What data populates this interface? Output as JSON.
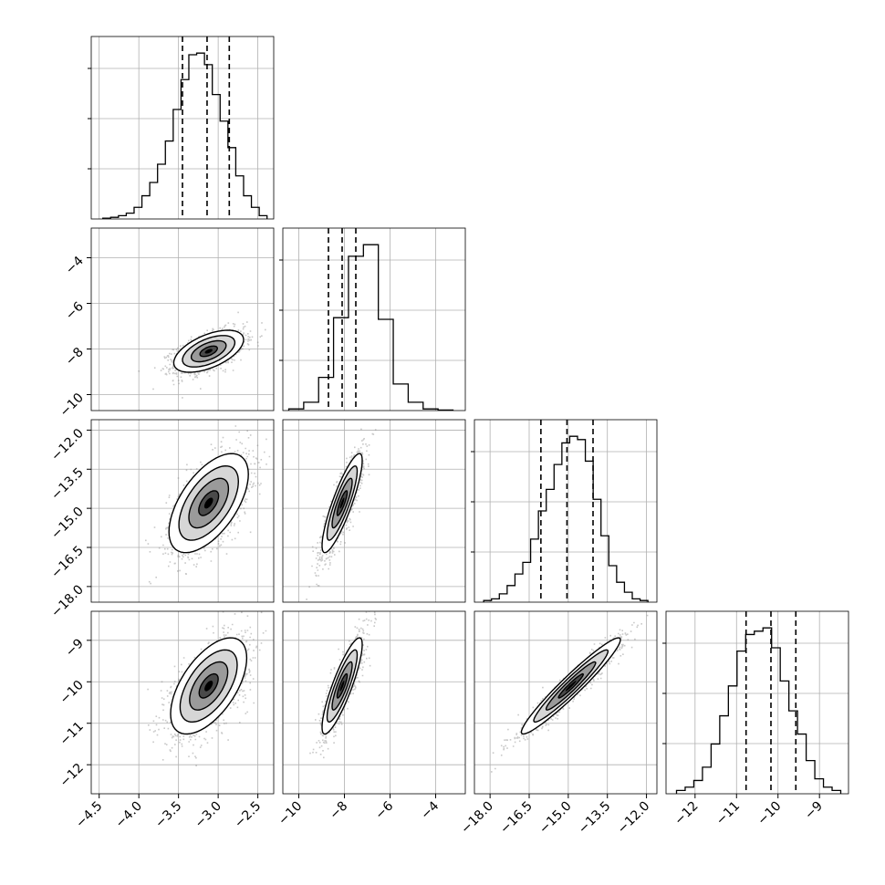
{
  "chart_data": {
    "type": "corner",
    "n_params": 4,
    "colors": {
      "marks": "#000000",
      "scatter": "#888888",
      "grid": "#b0b0b0",
      "background": "#ffffff"
    },
    "grid": true,
    "params": [
      {
        "range": [
          -4.6,
          -2.3
        ],
        "ticks": [
          -4.5,
          -4.0,
          -3.5,
          -3.0,
          -2.5
        ],
        "tick_labels": [
          "−4.5",
          "−4.0",
          "−3.5",
          "−3.0",
          "−2.5"
        ],
        "quantiles": [
          -3.45,
          -3.14,
          -2.86
        ],
        "hist": [
          0.005,
          0.01,
          0.02,
          0.035,
          0.07,
          0.14,
          0.22,
          0.33,
          0.47,
          0.66,
          0.84,
          0.99,
          1.0,
          0.93,
          0.75,
          0.59,
          0.43,
          0.26,
          0.14,
          0.07,
          0.02
        ]
      },
      {
        "range": [
          -10.7,
          -2.7
        ],
        "ticks": [
          -10,
          -8,
          -6,
          -4
        ],
        "tick_labels": [
          "−10",
          "−8",
          "−6",
          "−4"
        ],
        "quantiles": [
          -8.7,
          -8.1,
          -7.5
        ],
        "hist": [
          0.01,
          0.05,
          0.2,
          0.56,
          0.93,
          1.0,
          0.55,
          0.16,
          0.05,
          0.01,
          0.003
        ]
      },
      {
        "range": [
          -18.6,
          -11.6
        ],
        "ticks": [
          -18.0,
          -16.5,
          -15.0,
          -13.5,
          -12.0
        ],
        "tick_labels": [
          "−18.0",
          "−16.5",
          "−15.0",
          "−13.5",
          "−12.0"
        ],
        "quantiles": [
          -16.05,
          -15.05,
          -14.05
        ],
        "hist": [
          0.01,
          0.02,
          0.05,
          0.1,
          0.17,
          0.24,
          0.38,
          0.55,
          0.68,
          0.83,
          0.96,
          1.0,
          0.98,
          0.85,
          0.62,
          0.4,
          0.22,
          0.12,
          0.06,
          0.02,
          0.01
        ]
      },
      {
        "range": [
          -12.7,
          -8.3
        ],
        "ticks": [
          -12,
          -11,
          -10,
          -9
        ],
        "tick_labels": [
          "−12",
          "−11",
          "−10",
          "−9"
        ],
        "quantiles": [
          -10.77,
          -10.17,
          -9.57
        ],
        "hist": [
          0.02,
          0.04,
          0.08,
          0.16,
          0.3,
          0.47,
          0.65,
          0.86,
          0.96,
          0.98,
          1.0,
          0.88,
          0.68,
          0.5,
          0.36,
          0.2,
          0.09,
          0.04,
          0.02
        ]
      }
    ],
    "pairs": [
      {
        "row": 1,
        "col": 0,
        "mean": [
          -3.12,
          -8.1
        ],
        "sd": [
          0.22,
          0.46
        ],
        "corr": 0.55
      },
      {
        "row": 2,
        "col": 0,
        "mean": [
          -3.12,
          -14.8
        ],
        "sd": [
          0.25,
          0.95
        ],
        "corr": 0.58
      },
      {
        "row": 2,
        "col": 1,
        "mean": [
          -8.1,
          -14.8
        ],
        "sd": [
          0.44,
          0.95
        ],
        "corr": 0.86
      },
      {
        "row": 3,
        "col": 0,
        "mean": [
          -3.12,
          -10.1
        ],
        "sd": [
          0.24,
          0.58
        ],
        "corr": 0.58
      },
      {
        "row": 3,
        "col": 1,
        "mean": [
          -8.1,
          -10.1
        ],
        "sd": [
          0.44,
          0.58
        ],
        "corr": 0.86
      },
      {
        "row": 3,
        "col": 2,
        "mean": [
          -14.9,
          -10.1
        ],
        "sd": [
          0.95,
          0.58
        ],
        "corr": 0.96
      }
    ],
    "contour_levels_sigma": [
      0.5,
      1.0,
      1.5,
      2.0
    ]
  }
}
